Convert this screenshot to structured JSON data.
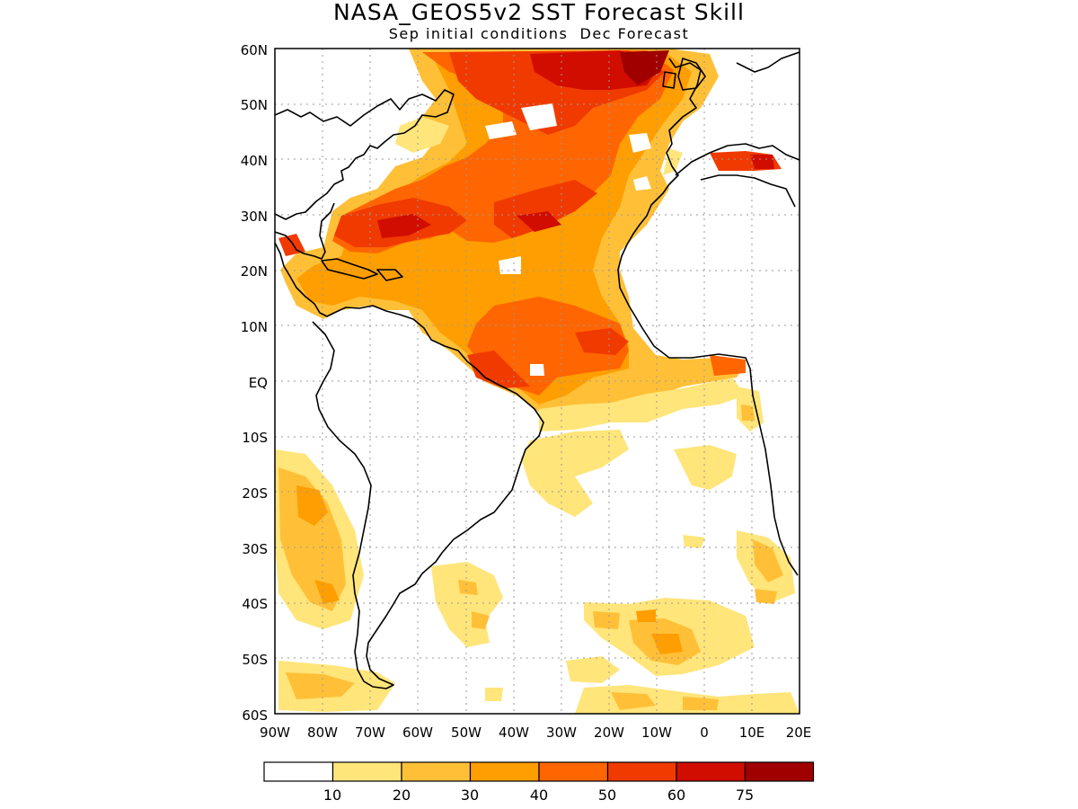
{
  "map": {
    "title": "NASA_GEOS5v2 SST Forecast Skill",
    "subtitle": "Sep initial conditions  Dec Forecast",
    "lat_labels": [
      "60N",
      "50N",
      "40N",
      "30N",
      "20N",
      "10N",
      "EQ",
      "10S",
      "20S",
      "30S",
      "40S",
      "50S",
      "60S"
    ],
    "lon_labels": [
      "90W",
      "80W",
      "70W",
      "60W",
      "50W",
      "40W",
      "30W",
      "20W",
      "10W",
      "0",
      "10E",
      "20E"
    ],
    "lat_range": [
      -60,
      60
    ],
    "lon_range": [
      -90,
      20
    ],
    "grid": true,
    "colorbar": {
      "labels": [
        "10",
        "20",
        "30",
        "40",
        "50",
        "60",
        "75"
      ],
      "colors": [
        "#ffffff",
        "#ffe57a",
        "#ffc038",
        "#ff9e00",
        "#ff6500",
        "#f03a00",
        "#d10d00",
        "#a00000"
      ]
    },
    "colors": {
      "land_outline": "#000000",
      "grid": "#9a9a9a"
    }
  }
}
